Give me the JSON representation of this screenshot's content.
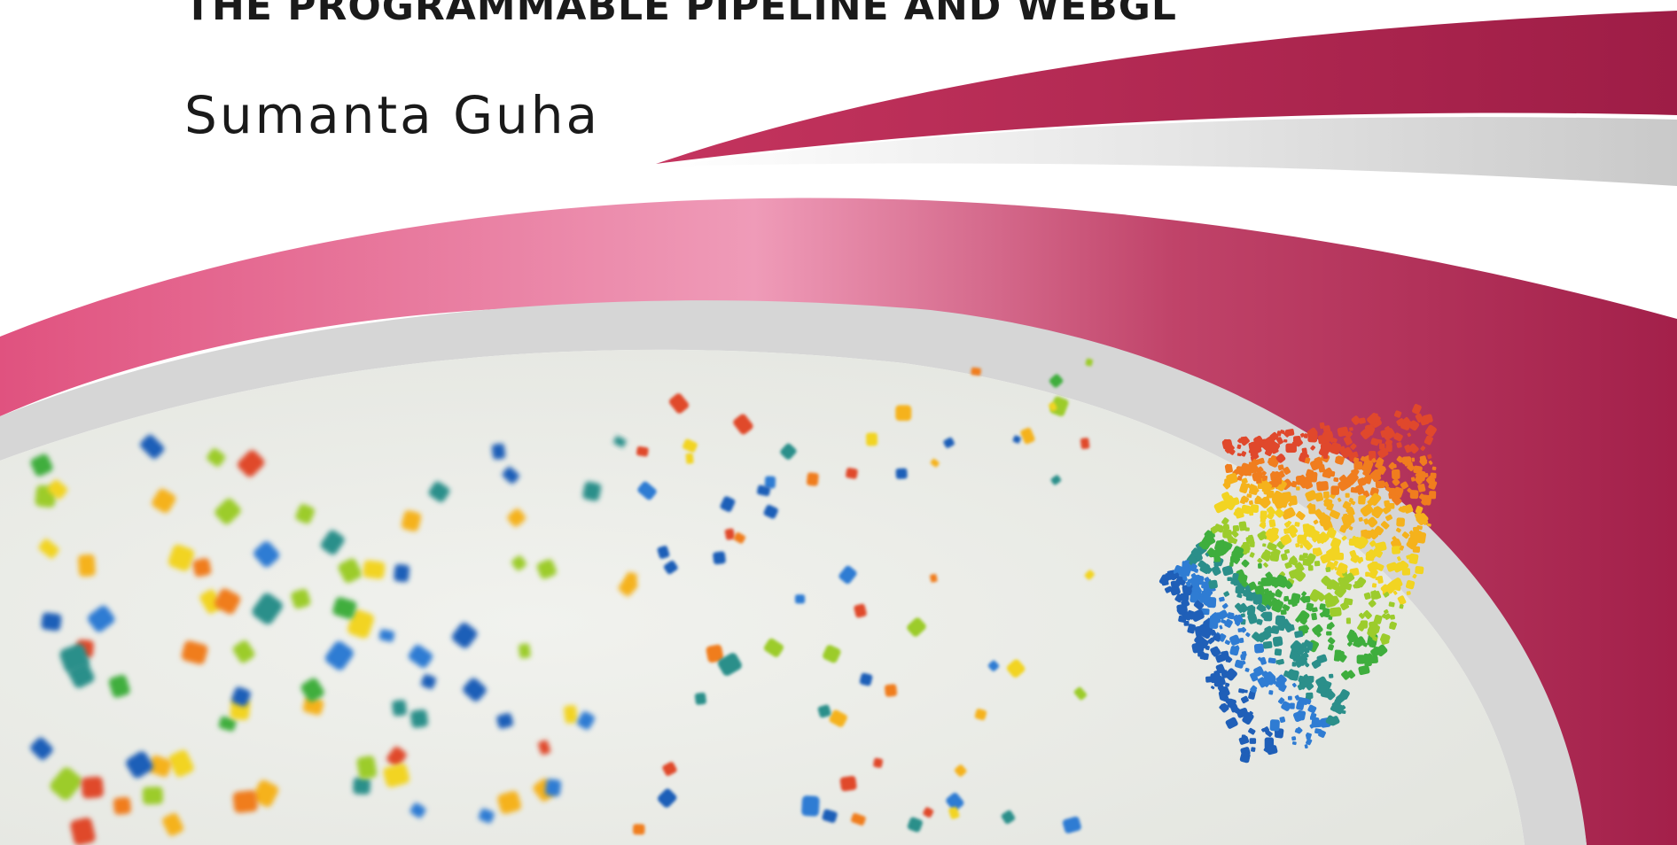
{
  "cover": {
    "subtitle": "THE PROGRAMMABLE PIPELINE AND WEBGL",
    "author": "Sumanta Guha"
  },
  "colors": {
    "primary_swoosh": "#a8234c",
    "light_swoosh": "#e07a9c",
    "gray_swoosh": "#cfcfcf",
    "plate": "#eceee8"
  },
  "particle_palette": [
    "#e0482c",
    "#f07d1e",
    "#f5b21c",
    "#f2d422",
    "#9ccc2c",
    "#3fae3d",
    "#2b8f8a",
    "#2f7cd3",
    "#1f5fb8"
  ]
}
